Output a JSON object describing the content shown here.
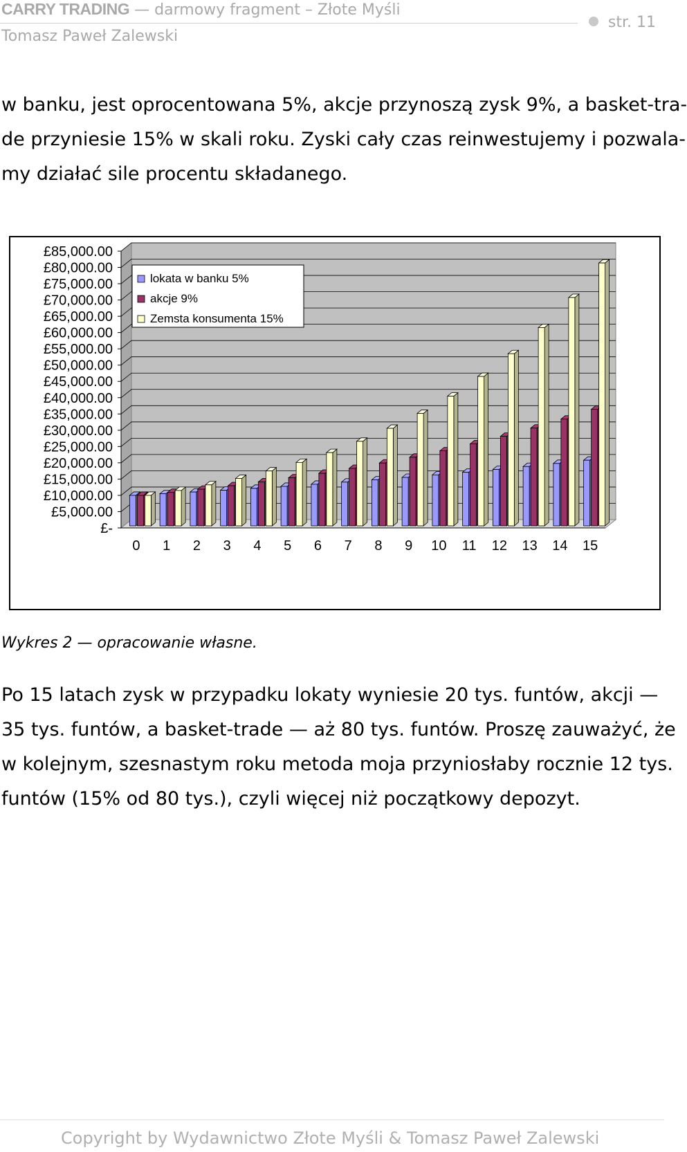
{
  "header": {
    "brand": "CARRY TRADING",
    "dash": "—",
    "subtitle": "darmowy fragment – Złote Myśli",
    "author": "Tomasz Paweł Zalewski",
    "page_label": "str. 11"
  },
  "intro_lines": [
    "w banku, jest oprocentowana 5%, akcje przynoszą zysk 9%, a basket-tra-",
    "de przyniesie 15% w skali roku. Zyski cały czas reinwestujemy i pozwala-",
    "my działać sile procentu składanego."
  ],
  "chart_data": {
    "type": "bar",
    "title": "",
    "xlabel": "",
    "ylabel": "",
    "ylim": [
      0,
      85000
    ],
    "y_ticks": [
      "£85,000.00",
      "£80,000.00",
      "£75,000.00",
      "£70,000.00",
      "£65,000.00",
      "£60,000.00",
      "£55,000.00",
      "£50,000.00",
      "£45,000.00",
      "£40,000.00",
      "£35,000.00",
      "£30,000.00",
      "£25,000.00",
      "£20,000.00",
      "£15,000.00",
      "£10,000.00",
      "£5,000.00",
      "£-"
    ],
    "categories": [
      "0",
      "1",
      "2",
      "3",
      "4",
      "5",
      "6",
      "7",
      "8",
      "9",
      "10",
      "11",
      "12",
      "13",
      "14",
      "15"
    ],
    "grid": true,
    "legend_position": "top-left",
    "series": [
      {
        "name": "lokata w banku 5%",
        "color": "#9999ff",
        "values": [
          10000,
          10500,
          11025,
          11576,
          12155,
          12763,
          13401,
          14071,
          14775,
          15513,
          16289,
          17103,
          17959,
          18856,
          19799,
          20789
        ]
      },
      {
        "name": "akcje 9%",
        "color": "#993366",
        "values": [
          10000,
          10900,
          11881,
          12950,
          14116,
          15386,
          16771,
          18280,
          19926,
          21719,
          23674,
          25804,
          28127,
          30658,
          33417,
          36425
        ]
      },
      {
        "name": "Zemsta konsumenta 15%",
        "color": "#ffffcc",
        "values": [
          10000,
          11500,
          13225,
          15209,
          17490,
          20114,
          23131,
          26600,
          30590,
          35179,
          40456,
          46524,
          53503,
          61528,
          70757,
          81371
        ]
      }
    ]
  },
  "caption": {
    "label": "Wykres 2 — opracowanie własne."
  },
  "outro_lines": [
    "Po 15 latach zysk w przypadku lokaty wyniesie 20 tys. funtów, akcji —",
    "35 tys. funtów, a basket-trade — aż 80 tys. funtów. Proszę zauważyć, że",
    "w kolejnym, szesnastym roku metoda moja przyniosłaby rocznie 12 tys.",
    "funtów (15% od 80 tys.), czyli więcej niż początkowy depozyt."
  ],
  "footer": {
    "copyright": "Copyright by Wydawnictwo Złote Myśli & Tomasz Paweł Zalewski"
  }
}
